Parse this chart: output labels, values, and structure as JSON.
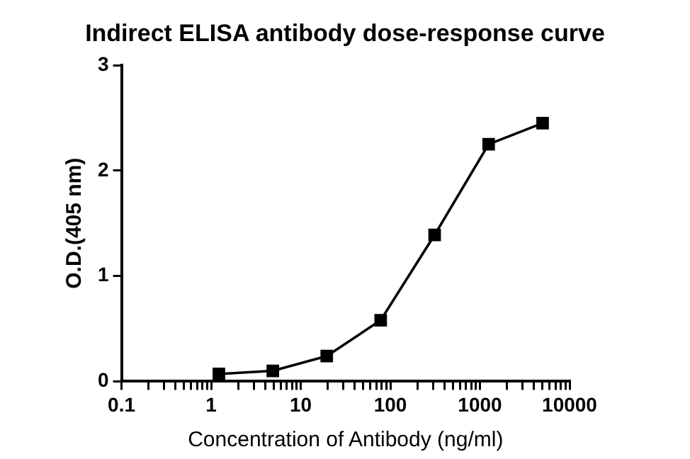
{
  "chart_data": {
    "type": "line",
    "title": "Indirect ELISA antibody dose-response curve",
    "xlabel": "Concentration of Antibody (ng/ml)",
    "ylabel": "O.D.(405 nm)",
    "log": "x",
    "xlim": [
      0.1,
      10000
    ],
    "xticks": [
      0.1,
      {
        "value": 0.2,
        "label": null
      },
      {
        "value": 0.3,
        "label": null
      },
      {
        "value": 0.4,
        "label": null
      },
      {
        "value": 0.5,
        "label": null
      },
      {
        "value": 0.6,
        "label": null
      },
      {
        "value": 0.7,
        "label": null
      },
      {
        "value": 0.8,
        "label": null
      },
      {
        "value": 0.9,
        "label": null
      },
      1,
      {
        "value": 2,
        "label": null
      },
      {
        "value": 3,
        "label": null
      },
      {
        "value": 4,
        "label": null
      },
      {
        "value": 5,
        "label": null
      },
      {
        "value": 6,
        "label": null
      },
      {
        "value": 7,
        "label": null
      },
      {
        "value": 8,
        "label": null
      },
      {
        "value": 9,
        "label": null
      },
      10,
      {
        "value": 20,
        "label": null
      },
      {
        "value": 30,
        "label": null
      },
      {
        "value": 40,
        "label": null
      },
      {
        "value": 50,
        "label": null
      },
      {
        "value": 60,
        "label": null
      },
      {
        "value": 70,
        "label": null
      },
      {
        "value": 80,
        "label": null
      },
      {
        "value": 90,
        "label": null
      },
      100,
      {
        "value": 200,
        "label": null
      },
      {
        "value": 300,
        "label": null
      },
      {
        "value": 400,
        "label": null
      },
      {
        "value": 500,
        "label": null
      },
      {
        "value": 600,
        "label": null
      },
      {
        "value": 700,
        "label": null
      },
      {
        "value": 800,
        "label": null
      },
      {
        "value": 900,
        "label": null
      },
      1000,
      {
        "value": 2000,
        "label": null
      },
      {
        "value": 3000,
        "label": null
      },
      {
        "value": 4000,
        "label": null
      },
      {
        "value": 5000,
        "label": null
      },
      {
        "value": 6000,
        "label": null
      },
      {
        "value": 7000,
        "label": null
      },
      {
        "value": 8000,
        "label": null
      },
      {
        "value": 9000,
        "label": null
      },
      10000
    ],
    "ylim": [
      0,
      3
    ],
    "yticks": [
      0,
      1,
      2,
      3
    ],
    "grid": false,
    "legend": false,
    "marker": "square",
    "line_style": "solid",
    "x": [
      1.22,
      4.88,
      19.5,
      78,
      312,
      1250,
      5000
    ],
    "series": [
      {
        "color": "#000000",
        "values": [
          0.07,
          0.1,
          0.24,
          0.58,
          1.39,
          2.25,
          2.45
        ]
      }
    ]
  }
}
